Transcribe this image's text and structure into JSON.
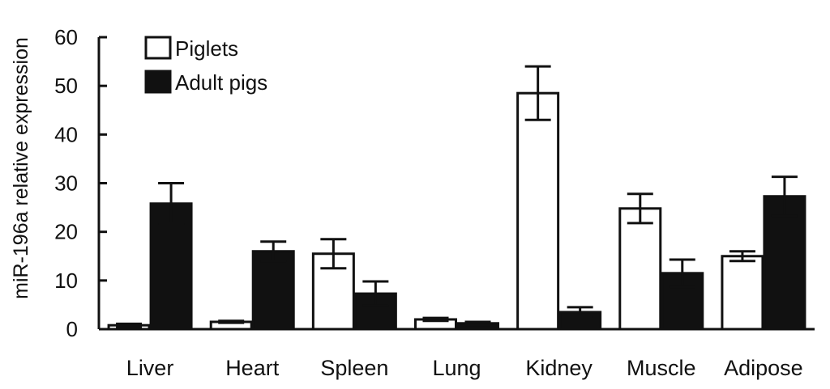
{
  "chart_data": {
    "type": "bar",
    "title": "",
    "xlabel": "",
    "ylabel": "miR-196a relative expression",
    "ylim": [
      0,
      60
    ],
    "yticks": [
      0,
      10,
      20,
      30,
      40,
      50,
      60
    ],
    "categories": [
      "Liver",
      "Heart",
      "Spleen",
      "Lung",
      "Kidney",
      "Muscle",
      "Adipose"
    ],
    "series": [
      {
        "name": "Piglets",
        "color": "#ffffff",
        "stroke": "#111111",
        "values": [
          0.8,
          1.5,
          15.5,
          2.0,
          48.5,
          24.8,
          15.0
        ],
        "errors": [
          0.3,
          0.2,
          3.0,
          0.3,
          5.5,
          3.0,
          1.0
        ]
      },
      {
        "name": "Adult pigs",
        "color": "#111111",
        "stroke": "#111111",
        "values": [
          25.8,
          16.0,
          7.3,
          1.2,
          3.5,
          11.5,
          27.3
        ],
        "errors": [
          4.2,
          2.0,
          2.5,
          0.3,
          1.0,
          2.8,
          4.0
        ]
      }
    ],
    "legend": "top-left",
    "grid": false
  }
}
